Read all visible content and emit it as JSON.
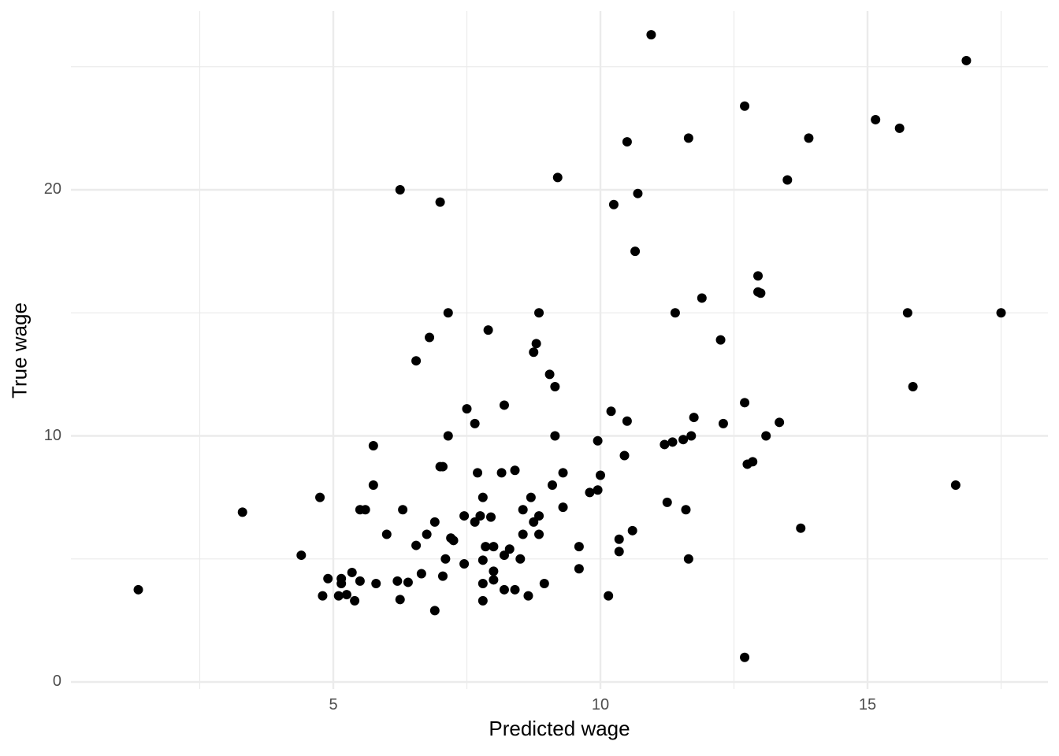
{
  "chart_data": {
    "type": "scatter",
    "title": "",
    "xlabel": "Predicted wage",
    "ylabel": "True wage",
    "xlim": [
      1.0,
      17.9
    ],
    "ylim": [
      -0.2,
      26.2
    ],
    "x_ticks": [
      5,
      10,
      15
    ],
    "y_ticks": [
      0,
      10,
      20
    ],
    "x_minor_grid": [
      2.5,
      7.5,
      12.5,
      17.5
    ],
    "y_minor_grid": [
      5,
      15,
      25
    ],
    "grid": true,
    "legend": null,
    "point_color": "#000000",
    "grid_color": "#ebebeb",
    "points": [
      [
        1.35,
        3.75
      ],
      [
        3.3,
        6.9
      ],
      [
        4.4,
        5.15
      ],
      [
        4.75,
        7.5
      ],
      [
        4.8,
        3.5
      ],
      [
        4.9,
        4.2
      ],
      [
        5.1,
        3.5
      ],
      [
        5.15,
        4.0
      ],
      [
        5.15,
        4.2
      ],
      [
        5.25,
        3.55
      ],
      [
        5.35,
        4.45
      ],
      [
        5.4,
        3.3
      ],
      [
        5.5,
        7.0
      ],
      [
        5.5,
        4.1
      ],
      [
        5.6,
        7.0
      ],
      [
        5.75,
        9.6
      ],
      [
        5.75,
        8.0
      ],
      [
        5.8,
        4.0
      ],
      [
        6.0,
        6.0
      ],
      [
        6.2,
        4.1
      ],
      [
        6.25,
        20.0
      ],
      [
        6.25,
        3.35
      ],
      [
        6.3,
        7.0
      ],
      [
        6.4,
        4.05
      ],
      [
        6.55,
        13.05
      ],
      [
        6.55,
        5.55
      ],
      [
        6.65,
        4.4
      ],
      [
        6.75,
        6.0
      ],
      [
        6.8,
        14.0
      ],
      [
        6.9,
        6.5
      ],
      [
        6.9,
        2.9
      ],
      [
        7.0,
        19.5
      ],
      [
        7.0,
        8.75
      ],
      [
        7.05,
        8.75
      ],
      [
        7.05,
        4.3
      ],
      [
        7.1,
        5.0
      ],
      [
        7.15,
        10.0
      ],
      [
        7.15,
        15.0
      ],
      [
        7.2,
        5.85
      ],
      [
        7.25,
        5.75
      ],
      [
        7.45,
        6.75
      ],
      [
        7.45,
        4.8
      ],
      [
        7.5,
        11.1
      ],
      [
        7.65,
        10.5
      ],
      [
        7.65,
        6.5
      ],
      [
        7.7,
        8.5
      ],
      [
        7.75,
        6.75
      ],
      [
        7.8,
        7.5
      ],
      [
        7.8,
        4.95
      ],
      [
        7.8,
        4.0
      ],
      [
        7.8,
        3.3
      ],
      [
        7.85,
        5.5
      ],
      [
        7.9,
        14.3
      ],
      [
        7.95,
        6.7
      ],
      [
        8.0,
        5.5
      ],
      [
        8.0,
        4.5
      ],
      [
        8.0,
        4.15
      ],
      [
        8.15,
        8.5
      ],
      [
        8.2,
        11.25
      ],
      [
        8.2,
        5.15
      ],
      [
        8.2,
        3.75
      ],
      [
        8.3,
        5.4
      ],
      [
        8.4,
        8.6
      ],
      [
        8.4,
        3.75
      ],
      [
        8.5,
        5.0
      ],
      [
        8.55,
        7.0
      ],
      [
        8.55,
        6.0
      ],
      [
        8.65,
        3.5
      ],
      [
        8.7,
        7.5
      ],
      [
        8.75,
        13.4
      ],
      [
        8.75,
        6.5
      ],
      [
        8.8,
        13.75
      ],
      [
        8.85,
        15.0
      ],
      [
        8.85,
        6.75
      ],
      [
        8.85,
        6.0
      ],
      [
        8.95,
        4.0
      ],
      [
        9.05,
        12.5
      ],
      [
        9.1,
        8.0
      ],
      [
        9.15,
        12.0
      ],
      [
        9.15,
        10.0
      ],
      [
        9.2,
        20.5
      ],
      [
        9.3,
        8.5
      ],
      [
        9.3,
        7.1
      ],
      [
        9.6,
        5.5
      ],
      [
        9.6,
        4.6
      ],
      [
        9.8,
        7.7
      ],
      [
        9.95,
        7.8
      ],
      [
        9.95,
        9.8
      ],
      [
        10.0,
        8.4
      ],
      [
        10.15,
        3.5
      ],
      [
        10.2,
        11.0
      ],
      [
        10.25,
        19.4
      ],
      [
        10.35,
        5.8
      ],
      [
        10.35,
        5.3
      ],
      [
        10.45,
        9.2
      ],
      [
        10.5,
        10.6
      ],
      [
        10.5,
        21.95
      ],
      [
        10.6,
        6.15
      ],
      [
        10.65,
        17.5
      ],
      [
        10.7,
        19.85
      ],
      [
        10.95,
        26.3
      ],
      [
        11.2,
        9.65
      ],
      [
        11.25,
        7.3
      ],
      [
        11.35,
        9.75
      ],
      [
        11.4,
        15.0
      ],
      [
        11.55,
        9.85
      ],
      [
        11.6,
        7.0
      ],
      [
        11.65,
        22.1
      ],
      [
        11.65,
        5.0
      ],
      [
        11.7,
        10.0
      ],
      [
        11.75,
        10.75
      ],
      [
        11.9,
        15.6
      ],
      [
        12.25,
        13.9
      ],
      [
        12.3,
        10.5
      ],
      [
        12.7,
        23.4
      ],
      [
        12.7,
        11.35
      ],
      [
        12.7,
        1.0
      ],
      [
        12.75,
        8.85
      ],
      [
        12.85,
        8.95
      ],
      [
        12.95,
        16.5
      ],
      [
        12.95,
        15.85
      ],
      [
        13.0,
        15.8
      ],
      [
        13.1,
        10.0
      ],
      [
        13.35,
        10.55
      ],
      [
        13.5,
        20.4
      ],
      [
        13.75,
        6.25
      ],
      [
        13.9,
        22.1
      ],
      [
        15.15,
        22.85
      ],
      [
        15.6,
        22.5
      ],
      [
        15.75,
        15.0
      ],
      [
        15.85,
        12.0
      ],
      [
        16.65,
        8.0
      ],
      [
        16.85,
        25.25
      ],
      [
        17.5,
        15.0
      ]
    ]
  }
}
